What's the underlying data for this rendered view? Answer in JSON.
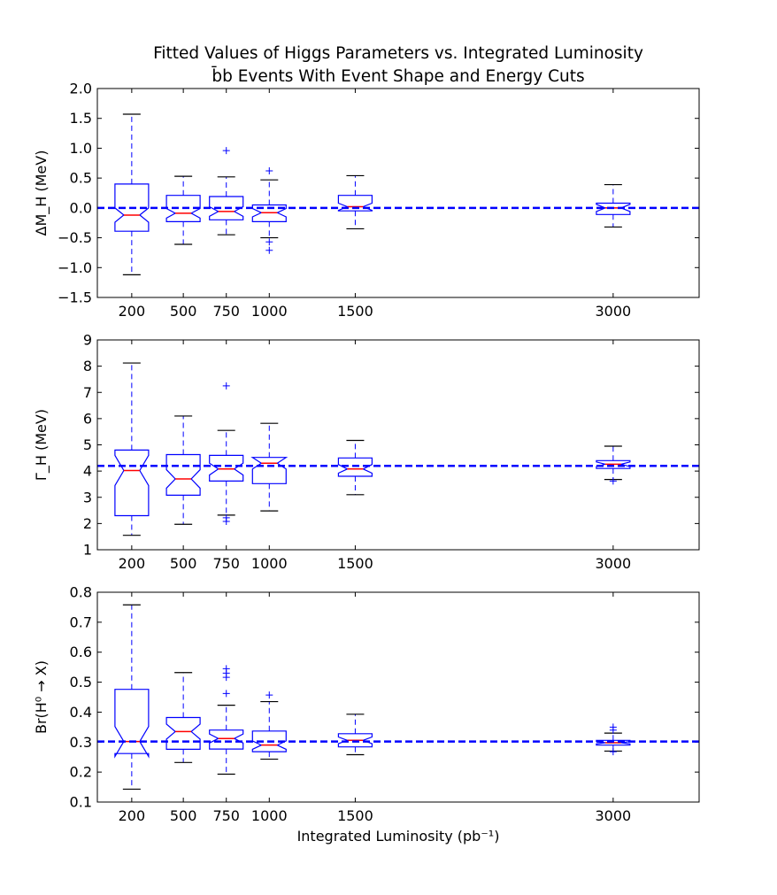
{
  "figure": {
    "title_line1": "Fitted Values of Higgs Parameters vs. Integrated Luminosity",
    "title_line2": "b̄b Events With Event Shape and Energy Cuts",
    "xlabel": "Integrated Luminosity (pb⁻¹)"
  },
  "colors": {
    "box": "#0000ff",
    "median": "#ff0000",
    "whisker_cap": "#000000",
    "reference_line": "#0000ff"
  },
  "chart_data": [
    {
      "type": "boxplot",
      "title": "",
      "ylabel": "ΔM_H (MeV)",
      "xlim": [
        0,
        3500
      ],
      "ylim": [
        -1.5,
        2.0
      ],
      "yticks": [
        -1.5,
        -1.0,
        -0.5,
        0.0,
        0.5,
        1.0,
        1.5,
        2.0
      ],
      "ytick_labels": [
        "−1.5",
        "−1.0",
        "−0.5",
        "0.0",
        "0.5",
        "1.0",
        "1.5",
        "2.0"
      ],
      "categories": [
        200,
        500,
        750,
        1000,
        1500,
        3000
      ],
      "xtick_labels": [
        "200",
        "500",
        "750",
        "1000",
        "1500",
        "3000"
      ],
      "reference": 0.0,
      "boxes": [
        {
          "x": 200,
          "whisker_low": -1.12,
          "q1": -0.39,
          "median": -0.12,
          "q3": 0.4,
          "whisker_high": 1.57,
          "notch_low": -0.24,
          "notch_high": 0.0,
          "fliers": []
        },
        {
          "x": 500,
          "whisker_low": -0.61,
          "q1": -0.23,
          "median": -0.09,
          "q3": 0.21,
          "whisker_high": 0.53,
          "notch_low": -0.17,
          "notch_high": -0.01,
          "fliers": []
        },
        {
          "x": 750,
          "whisker_low": -0.45,
          "q1": -0.2,
          "median": -0.06,
          "q3": 0.19,
          "whisker_high": 0.52,
          "notch_low": -0.14,
          "notch_high": 0.02,
          "fliers": [
            0.96
          ]
        },
        {
          "x": 1000,
          "whisker_low": -0.5,
          "q1": -0.23,
          "median": -0.08,
          "q3": 0.05,
          "whisker_high": 0.47,
          "notch_low": -0.15,
          "notch_high": -0.01,
          "fliers": [
            0.62,
            -0.57,
            -0.71
          ]
        },
        {
          "x": 1500,
          "whisker_low": -0.35,
          "q1": -0.05,
          "median": 0.02,
          "q3": 0.21,
          "whisker_high": 0.54,
          "notch_low": -0.04,
          "notch_high": 0.08,
          "fliers": []
        },
        {
          "x": 3000,
          "whisker_low": -0.32,
          "q1": -0.11,
          "median": 0.0,
          "q3": 0.08,
          "whisker_high": 0.39,
          "notch_low": -0.06,
          "notch_high": 0.06,
          "fliers": []
        }
      ]
    },
    {
      "type": "boxplot",
      "title": "",
      "ylabel": "Γ_H (MeV)",
      "xlim": [
        0,
        3500
      ],
      "ylim": [
        1,
        9
      ],
      "yticks": [
        1,
        2,
        3,
        4,
        5,
        6,
        7,
        8,
        9
      ],
      "ytick_labels": [
        "1",
        "2",
        "3",
        "4",
        "5",
        "6",
        "7",
        "8",
        "9"
      ],
      "categories": [
        200,
        500,
        750,
        1000,
        1500,
        3000
      ],
      "xtick_labels": [
        "200",
        "500",
        "750",
        "1000",
        "1500",
        "3000"
      ],
      "reference": 4.2,
      "boxes": [
        {
          "x": 200,
          "whisker_low": 1.55,
          "q1": 2.3,
          "median": 4.02,
          "q3": 4.8,
          "whisker_high": 8.12,
          "notch_low": 3.45,
          "notch_high": 4.6,
          "fliers": []
        },
        {
          "x": 500,
          "whisker_low": 1.97,
          "q1": 3.08,
          "median": 3.7,
          "q3": 4.63,
          "whisker_high": 6.1,
          "notch_low": 3.35,
          "notch_high": 4.05,
          "fliers": []
        },
        {
          "x": 750,
          "whisker_low": 2.32,
          "q1": 3.62,
          "median": 4.08,
          "q3": 4.6,
          "whisker_high": 5.55,
          "notch_low": 3.85,
          "notch_high": 4.3,
          "fliers": [
            7.25,
            2.22,
            2.08
          ]
        },
        {
          "x": 1000,
          "whisker_low": 2.48,
          "q1": 3.52,
          "median": 4.3,
          "q3": 4.52,
          "whisker_high": 5.82,
          "notch_low": 4.08,
          "notch_high": 4.52,
          "fliers": []
        },
        {
          "x": 1500,
          "whisker_low": 3.1,
          "q1": 3.8,
          "median": 4.08,
          "q3": 4.5,
          "whisker_high": 5.17,
          "notch_low": 3.92,
          "notch_high": 4.25,
          "fliers": []
        },
        {
          "x": 3000,
          "whisker_low": 3.68,
          "q1": 4.1,
          "median": 4.26,
          "q3": 4.4,
          "whisker_high": 4.95,
          "notch_low": 4.17,
          "notch_high": 4.35,
          "fliers": [
            3.62
          ]
        }
      ]
    },
    {
      "type": "boxplot",
      "title": "",
      "ylabel": "Br(H⁰ → X)",
      "xlim": [
        0,
        3500
      ],
      "ylim": [
        0.1,
        0.8
      ],
      "yticks": [
        0.1,
        0.2,
        0.3,
        0.4,
        0.5,
        0.6,
        0.7,
        0.8
      ],
      "ytick_labels": [
        "0.1",
        "0.2",
        "0.3",
        "0.4",
        "0.5",
        "0.6",
        "0.7",
        "0.8"
      ],
      "categories": [
        200,
        500,
        750,
        1000,
        1500,
        3000
      ],
      "xtick_labels": [
        "200",
        "500",
        "750",
        "1000",
        "1500",
        "3000"
      ],
      "reference": 0.302,
      "boxes": [
        {
          "x": 200,
          "whisker_low": 0.143,
          "q1": 0.262,
          "median": 0.302,
          "q3": 0.476,
          "whisker_high": 0.758,
          "notch_low": 0.252,
          "notch_high": 0.352,
          "fliers": []
        },
        {
          "x": 500,
          "whisker_low": 0.232,
          "q1": 0.276,
          "median": 0.335,
          "q3": 0.382,
          "whisker_high": 0.532,
          "notch_low": 0.31,
          "notch_high": 0.36,
          "fliers": []
        },
        {
          "x": 750,
          "whisker_low": 0.193,
          "q1": 0.277,
          "median": 0.312,
          "q3": 0.34,
          "whisker_high": 0.423,
          "notch_low": 0.297,
          "notch_high": 0.327,
          "fliers": [
            0.545,
            0.53,
            0.516,
            0.462
          ]
        },
        {
          "x": 1000,
          "whisker_low": 0.243,
          "q1": 0.268,
          "median": 0.29,
          "q3": 0.337,
          "whisker_high": 0.435,
          "notch_low": 0.276,
          "notch_high": 0.304,
          "fliers": [
            0.457
          ]
        },
        {
          "x": 1500,
          "whisker_low": 0.258,
          "q1": 0.284,
          "median": 0.306,
          "q3": 0.328,
          "whisker_high": 0.393,
          "notch_low": 0.295,
          "notch_high": 0.317,
          "fliers": []
        },
        {
          "x": 3000,
          "whisker_low": 0.27,
          "q1": 0.29,
          "median": 0.298,
          "q3": 0.306,
          "whisker_high": 0.33,
          "notch_low": 0.294,
          "notch_high": 0.302,
          "fliers": [
            0.35,
            0.34,
            0.268
          ]
        }
      ]
    }
  ]
}
